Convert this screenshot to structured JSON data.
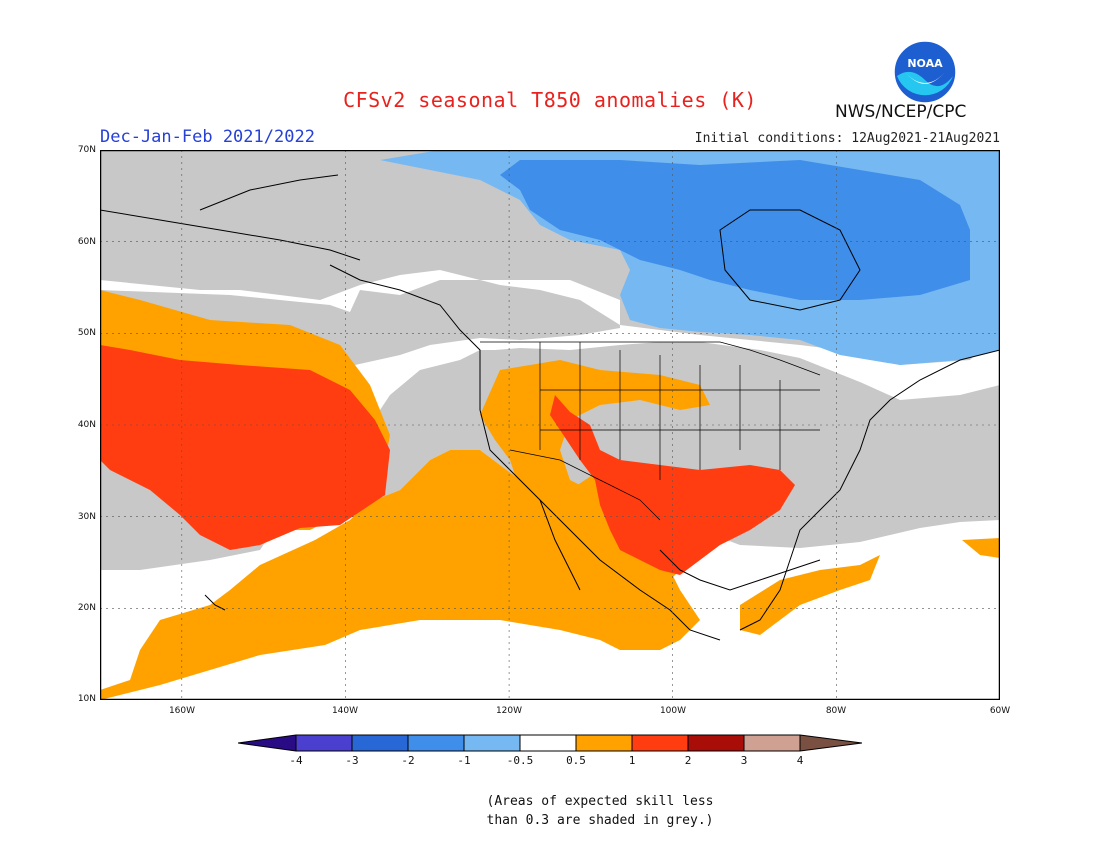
{
  "header": {
    "title": "CFSv2 seasonal T850 anomalies (K)",
    "season": "Dec-Jan-Feb 2021/2022",
    "initial_conditions": "Initial conditions: 12Aug2021-21Aug2021",
    "agency": "NWS/NCEP/CPC",
    "logo_text": "NOAA"
  },
  "map": {
    "extent": {
      "lon": [
        -170,
        -60
      ],
      "lat": [
        10,
        70
      ]
    },
    "lat_labels": [
      "70N",
      "60N",
      "50N",
      "40N",
      "30N",
      "20N",
      "10N"
    ],
    "lon_labels": [
      "160W",
      "140W",
      "120W",
      "100W",
      "80W",
      "60W"
    ],
    "grid": "dotted",
    "colors": {
      "grey": "#c8c8c8",
      "neutral": "#ffffff",
      "cool_light": "#76b8f2",
      "cool": "#3f8eea",
      "warm": "#ffa200",
      "warm_strong": "#ff3d10"
    }
  },
  "colorbar": {
    "labels": [
      "-4",
      "-3",
      "-2",
      "-1",
      "-0.5",
      "0.5",
      "1",
      "2",
      "3",
      "4"
    ],
    "colors": [
      "#2a0b86",
      "#4b3fd0",
      "#2768d6",
      "#3f8eea",
      "#76b8f2",
      "#ffffff",
      "#ffa200",
      "#ff3d10",
      "#a80d08",
      "#cfa192",
      "#7a5042"
    ]
  },
  "footnote": {
    "line1": "(Areas of expected skill less",
    "line2": "than 0.3 are shaded in grey.)"
  }
}
